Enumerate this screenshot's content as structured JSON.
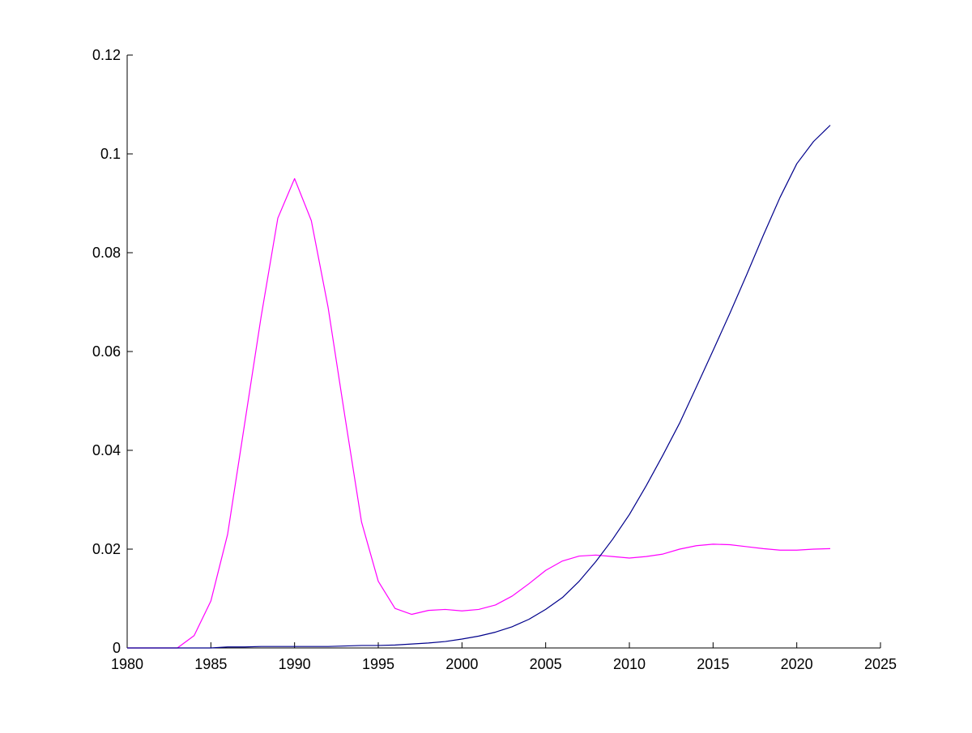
{
  "chart_data": {
    "type": "line",
    "title": "",
    "xlabel": "",
    "ylabel": "",
    "xlim": [
      1980,
      2025
    ],
    "ylim": [
      0,
      0.12
    ],
    "grid": false,
    "legend": "none",
    "x_ticks": [
      1980,
      1985,
      1990,
      1995,
      2000,
      2005,
      2010,
      2015,
      2020,
      2025
    ],
    "x_tick_labels": [
      "1980",
      "1985",
      "1990",
      "1995",
      "2000",
      "2005",
      "2010",
      "2015",
      "2020",
      "2025"
    ],
    "y_ticks": [
      0,
      0.02,
      0.04,
      0.06,
      0.08,
      0.1,
      0.12
    ],
    "y_tick_labels": [
      "0",
      "0.02",
      "0.04",
      "0.06",
      "0.08",
      "0.1",
      "0.12"
    ],
    "x": [
      1980,
      1981,
      1982,
      1983,
      1984,
      1985,
      1986,
      1987,
      1988,
      1989,
      1990,
      1991,
      1992,
      1993,
      1994,
      1995,
      1996,
      1997,
      1998,
      1999,
      2000,
      2001,
      2002,
      2003,
      2004,
      2005,
      2006,
      2007,
      2008,
      2009,
      2010,
      2011,
      2012,
      2013,
      2014,
      2015,
      2016,
      2017,
      2018,
      2019,
      2020,
      2021,
      2022
    ],
    "series": [
      {
        "color": "#ff00ff",
        "values": [
          0,
          0,
          0,
          0,
          0.0025,
          0.0095,
          0.023,
          0.045,
          0.067,
          0.087,
          0.095,
          0.0865,
          0.069,
          0.047,
          0.0255,
          0.0135,
          0.008,
          0.0068,
          0.0076,
          0.0078,
          0.0075,
          0.0078,
          0.0087,
          0.0105,
          0.013,
          0.0157,
          0.0176,
          0.0186,
          0.0188,
          0.0185,
          0.0182,
          0.0185,
          0.019,
          0.02,
          0.0207,
          0.021,
          0.0209,
          0.0205,
          0.0201,
          0.0198,
          0.0198,
          0.02,
          0.0201
        ]
      },
      {
        "color": "#00008b",
        "values": [
          0,
          0,
          0,
          0,
          0,
          0,
          0.0002,
          0.0002,
          0.0003,
          0.0003,
          0.0003,
          0.0003,
          0.0003,
          0.0004,
          0.0005,
          0.0005,
          0.0006,
          0.0008,
          0.001,
          0.0013,
          0.0018,
          0.0024,
          0.0032,
          0.0043,
          0.0058,
          0.0078,
          0.0102,
          0.0135,
          0.0175,
          0.022,
          0.027,
          0.0328,
          0.039,
          0.0455,
          0.0528,
          0.0602,
          0.0677,
          0.0755,
          0.0835,
          0.0912,
          0.098,
          0.1025,
          0.1058
        ]
      }
    ]
  }
}
